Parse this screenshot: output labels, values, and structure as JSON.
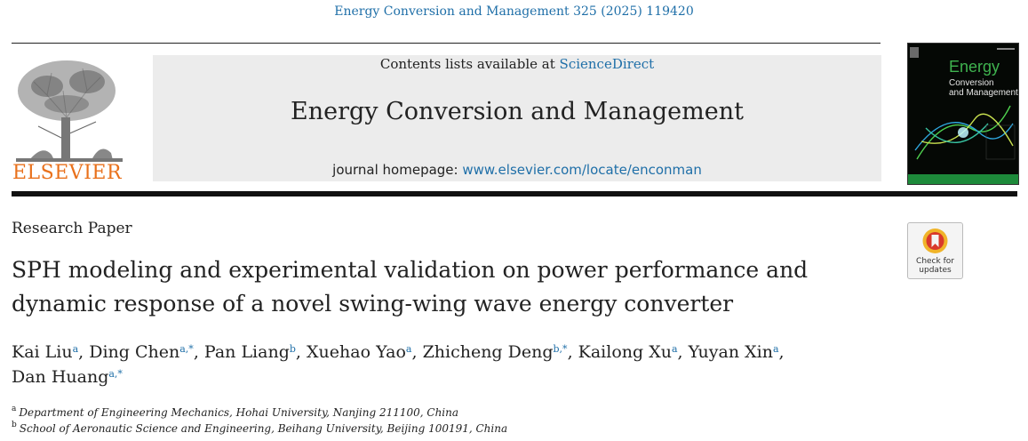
{
  "header": {
    "citation": "Energy Conversion and Management 325 (2025) 119420"
  },
  "publisher": {
    "name": "ELSEVIER"
  },
  "journal_box": {
    "contents_prefix": "Contents lists available at ",
    "contents_link": "ScienceDirect",
    "journal_title": "Energy Conversion and Management",
    "homepage_prefix": "journal homepage: ",
    "homepage_link": "www.elsevier.com/locate/enconman"
  },
  "cover": {
    "line1": "Energy",
    "line2": "Conversion",
    "line3": "and Management"
  },
  "check_updates": {
    "line1": "Check for",
    "line2": "updates"
  },
  "article": {
    "type": "Research Paper",
    "title_line1": "SPH modeling and experimental validation on power performance and",
    "title_line2": "dynamic response of a novel swing-wing wave energy converter"
  },
  "authors": [
    {
      "name": "Kai Liu",
      "sup": "a",
      "sep": ", "
    },
    {
      "name": "Ding Chen",
      "sup": "a,*",
      "sep": ", "
    },
    {
      "name": "Pan Liang",
      "sup": "b",
      "sep": ", "
    },
    {
      "name": "Xuehao Yao",
      "sup": "a",
      "sep": ", "
    },
    {
      "name": "Zhicheng Deng",
      "sup": "b,*",
      "sep": ", "
    },
    {
      "name": "Kailong Xu",
      "sup": "a",
      "sep": ", "
    },
    {
      "name": "Yuyan Xin",
      "sup": "a",
      "sep": ","
    },
    {
      "name": "Dan Huang",
      "sup": "a,*",
      "sep": ""
    }
  ],
  "affiliations": [
    {
      "mark": "a",
      "text": "Department of Engineering Mechanics, Hohai University, Nanjing 211100, China"
    },
    {
      "mark": "b",
      "text": "School of Aeronautic Science and Engineering, Beihang University, Beijing 100191, China"
    }
  ],
  "colors": {
    "link": "#1f6fa8",
    "elsevier_orange": "#e9711c",
    "box_gray": "#ececec"
  }
}
